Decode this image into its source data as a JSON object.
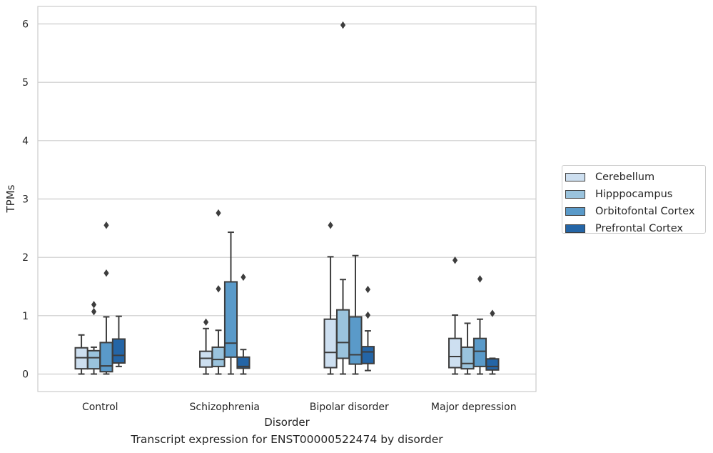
{
  "chart_data": {
    "type": "box",
    "title": "Transcript expression for ENST00000522474 by disorder",
    "xlabel": "Disorder",
    "ylabel": "TPMs",
    "ylim": [
      -0.3,
      6.3
    ],
    "yticks": [
      0,
      1,
      2,
      3,
      4,
      5,
      6
    ],
    "grid": "horizontal",
    "legend_position": "outside-right",
    "categories": [
      "Control",
      "Schizophrenia",
      "Bipolar disorder",
      "Major depression"
    ],
    "series": [
      {
        "name": "Cerebellum",
        "color": "#cddff0",
        "boxes": [
          {
            "min": 0.0,
            "q1": 0.09,
            "median": 0.28,
            "q3": 0.45,
            "max": 0.67,
            "outliers": []
          },
          {
            "min": 0.0,
            "q1": 0.12,
            "median": 0.27,
            "q3": 0.39,
            "max": 0.78,
            "outliers": [
              0.89
            ]
          },
          {
            "min": 0.0,
            "q1": 0.11,
            "median": 0.37,
            "q3": 0.94,
            "max": 2.01,
            "outliers": [
              2.55
            ]
          },
          {
            "min": 0.0,
            "q1": 0.11,
            "median": 0.3,
            "q3": 0.61,
            "max": 1.01,
            "outliers": [
              1.95
            ]
          }
        ]
      },
      {
        "name": "Hipppocampus",
        "color": "#9ac3dd",
        "boxes": [
          {
            "min": 0.0,
            "q1": 0.09,
            "median": 0.28,
            "q3": 0.4,
            "max": 0.46,
            "outliers": [
              1.07,
              1.19
            ]
          },
          {
            "min": 0.0,
            "q1": 0.13,
            "median": 0.25,
            "q3": 0.46,
            "max": 0.75,
            "outliers": [
              1.46,
              2.76
            ]
          },
          {
            "min": 0.0,
            "q1": 0.27,
            "median": 0.54,
            "q3": 1.1,
            "max": 1.62,
            "outliers": [
              5.98
            ]
          },
          {
            "min": 0.0,
            "q1": 0.09,
            "median": 0.18,
            "q3": 0.46,
            "max": 0.87,
            "outliers": []
          }
        ]
      },
      {
        "name": "Orbitofontal Cortex",
        "color": "#5a9ac9",
        "boxes": [
          {
            "min": 0.0,
            "q1": 0.04,
            "median": 0.14,
            "q3": 0.54,
            "max": 0.98,
            "outliers": [
              1.73,
              2.55
            ]
          },
          {
            "min": 0.0,
            "q1": 0.29,
            "median": 0.53,
            "q3": 1.58,
            "max": 2.43,
            "outliers": []
          },
          {
            "min": 0.0,
            "q1": 0.17,
            "median": 0.33,
            "q3": 0.98,
            "max": 2.03,
            "outliers": []
          },
          {
            "min": 0.0,
            "q1": 0.13,
            "median": 0.39,
            "q3": 0.61,
            "max": 0.94,
            "outliers": [
              1.63
            ]
          }
        ]
      },
      {
        "name": "Prefrontal Cortex",
        "color": "#2465a6",
        "boxes": [
          {
            "min": 0.13,
            "q1": 0.19,
            "median": 0.32,
            "q3": 0.6,
            "max": 0.99,
            "outliers": []
          },
          {
            "min": 0.0,
            "q1": 0.1,
            "median": 0.13,
            "q3": 0.29,
            "max": 0.42,
            "outliers": [
              1.66
            ]
          },
          {
            "min": 0.06,
            "q1": 0.18,
            "median": 0.38,
            "q3": 0.47,
            "max": 0.74,
            "outliers": [
              1.01,
              1.45
            ]
          },
          {
            "min": 0.0,
            "q1": 0.07,
            "median": 0.13,
            "q3": 0.26,
            "max": 0.27,
            "outliers": [
              1.04
            ]
          }
        ]
      }
    ]
  }
}
